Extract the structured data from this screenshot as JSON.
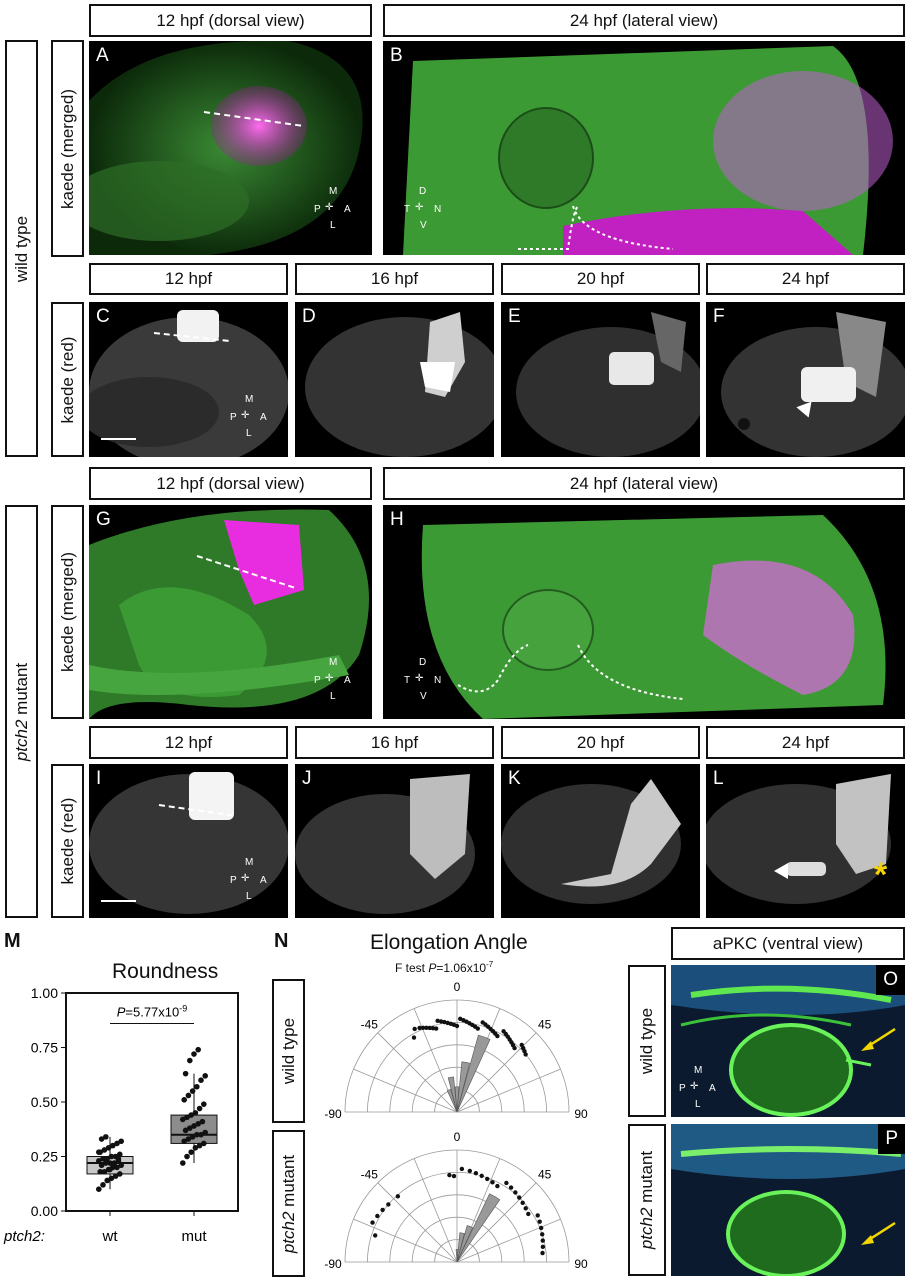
{
  "rows": {
    "wild_type": "wild type",
    "mutant_gene": "ptch2",
    "mutant_suffix": " mutant"
  },
  "headers": {
    "dorsal12": "12 hpf (dorsal view)",
    "lateral24": "24 hpf (lateral view)",
    "t12": "12 hpf",
    "t16": "16 hpf",
    "t20": "20 hpf",
    "t24": "24 hpf"
  },
  "side": {
    "merged": "kaede (merged)",
    "red": "kaede (red)"
  },
  "panels": [
    "A",
    "B",
    "C",
    "D",
    "E",
    "F",
    "G",
    "H",
    "I",
    "J",
    "K",
    "L"
  ],
  "compass_dorsal": {
    "top": "M",
    "bottom": "L",
    "left": "P",
    "right": "A"
  },
  "compass_lateral": {
    "top": "D",
    "bottom": "V",
    "left": "T",
    "right": "N"
  },
  "mark": "*",
  "roundness": {
    "letter": "M",
    "title": "Roundness",
    "pvalue_prefix": "P",
    "pvalue_rest": "=5.77x10",
    "pvalue_exp": "-9",
    "genotype_label": "ptch2:",
    "yticks": [
      "1.00",
      "0.75",
      "0.50",
      "0.25",
      "0.00"
    ],
    "categories": [
      "wt",
      "mut"
    ]
  },
  "chart_data": {
    "type": "box",
    "title": "Roundness",
    "categories": [
      "wt",
      "mut"
    ],
    "ylim": [
      0,
      1
    ],
    "boxes": [
      {
        "category": "wt",
        "min": 0.1,
        "q1": 0.17,
        "median": 0.22,
        "q3": 0.25,
        "max": 0.34
      },
      {
        "category": "mut",
        "min": 0.22,
        "q1": 0.31,
        "median": 0.35,
        "q3": 0.44,
        "max": 0.63
      }
    ],
    "points": {
      "wt": [
        0.1,
        0.12,
        0.14,
        0.15,
        0.16,
        0.17,
        0.18,
        0.18,
        0.19,
        0.2,
        0.2,
        0.21,
        0.21,
        0.22,
        0.22,
        0.22,
        0.23,
        0.23,
        0.24,
        0.24,
        0.25,
        0.25,
        0.26,
        0.27,
        0.28,
        0.29,
        0.3,
        0.31,
        0.32,
        0.33,
        0.34,
        0.19,
        0.21,
        0.24,
        0.27
      ],
      "mut": [
        0.22,
        0.25,
        0.27,
        0.29,
        0.3,
        0.31,
        0.32,
        0.33,
        0.34,
        0.35,
        0.35,
        0.36,
        0.37,
        0.38,
        0.39,
        0.4,
        0.41,
        0.42,
        0.43,
        0.44,
        0.45,
        0.47,
        0.49,
        0.51,
        0.53,
        0.55,
        0.57,
        0.6,
        0.62,
        0.63,
        0.69,
        0.72,
        0.74
      ]
    }
  },
  "elongation": {
    "letter": "N",
    "title": "Elongation Angle",
    "ftest_label": "F test ",
    "ftest_p": "P",
    "ftest_rest": "=1.06x10",
    "ftest_exp": "-7",
    "ticks": [
      "-90",
      "-45",
      "0",
      "45",
      "90"
    ],
    "wt_points": [
      -30,
      -27,
      -24,
      -22,
      -20,
      -18,
      -16,
      -14,
      -12,
      -10,
      -8,
      -6,
      -4,
      -2,
      0,
      2,
      4,
      6,
      8,
      10,
      12,
      14,
      16,
      18,
      20,
      22,
      24,
      26,
      28,
      30,
      32,
      34,
      36,
      38,
      40,
      42,
      44,
      46,
      48,
      50
    ],
    "mut_points": [
      -72,
      -65,
      -60,
      -55,
      -50,
      -42,
      -5,
      -2,
      3,
      8,
      12,
      16,
      20,
      24,
      28,
      32,
      36,
      40,
      44,
      48,
      52,
      56,
      60,
      64,
      68,
      72,
      76,
      80,
      84
    ],
    "wt_bins": [
      {
        "a": -20,
        "r": 0.28
      },
      {
        "a": -10,
        "r": 0.42
      },
      {
        "a": 0,
        "r": 0.3
      },
      {
        "a": 10,
        "r": 0.6
      },
      {
        "a": 20,
        "r": 0.95
      }
    ],
    "mut_bins": [
      {
        "a": 0,
        "r": 0.15
      },
      {
        "a": 10,
        "r": 0.35
      },
      {
        "a": 20,
        "r": 0.45
      },
      {
        "a": 30,
        "r": 0.9
      }
    ]
  },
  "apkc": {
    "header": "aPKC (ventral view)",
    "panel_o": "O",
    "panel_p": "P"
  }
}
